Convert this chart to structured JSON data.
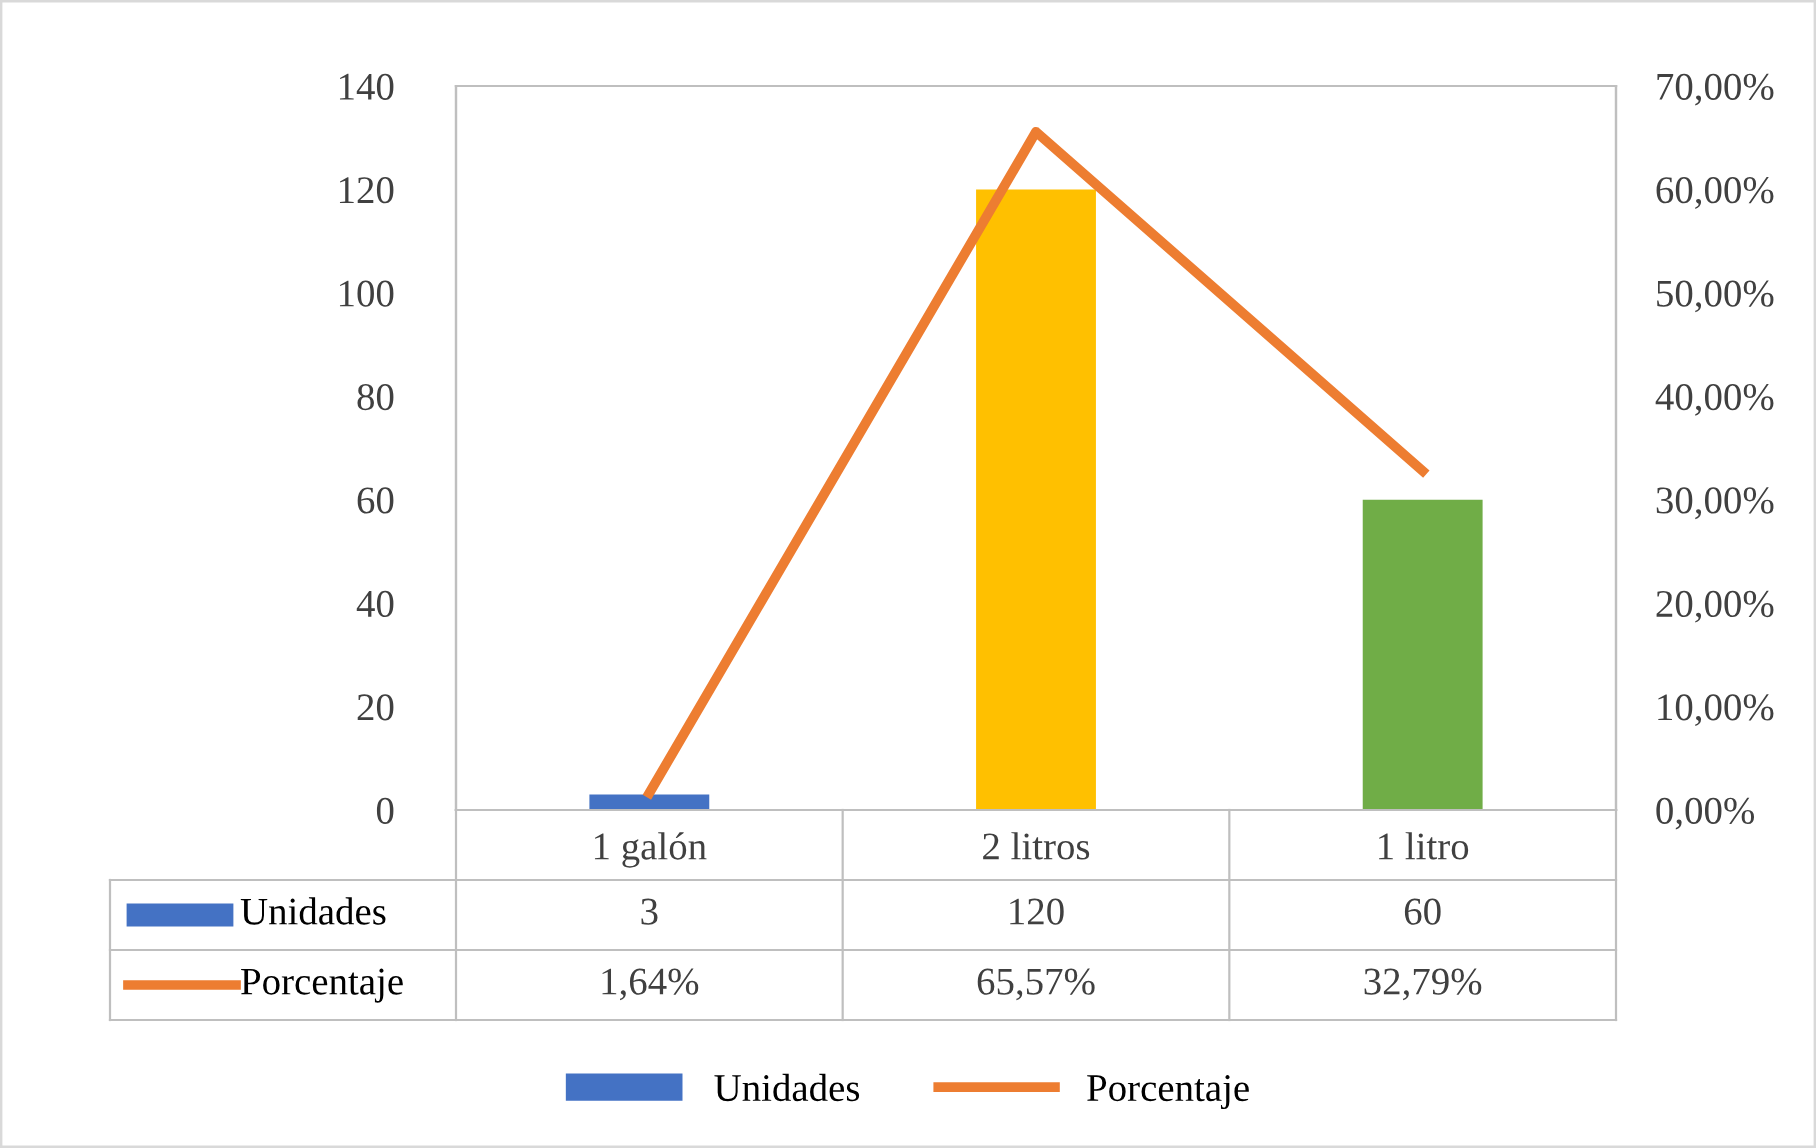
{
  "chart_data": {
    "type": "bar",
    "categories": [
      "1 galón",
      "2 litros",
      "1 litro"
    ],
    "series": [
      {
        "name": "Unidades",
        "type": "bar",
        "color": "#4472c4",
        "colors": [
          "#4472c4",
          "#ffc000",
          "#70ad47"
        ],
        "values": [
          3,
          120,
          60
        ],
        "value_labels": [
          "3",
          "120",
          "60"
        ]
      },
      {
        "name": "Porcentaje",
        "type": "line",
        "axis": "y2",
        "color": "#ed7d31",
        "values": [
          1.64,
          65.57,
          32.79
        ],
        "value_labels": [
          "1,64%",
          "65,57%",
          "32,79%"
        ]
      }
    ],
    "ylim": [
      0,
      140
    ],
    "yticks": [
      0,
      20,
      40,
      60,
      80,
      100,
      120,
      140
    ],
    "y2lim": [
      0,
      70
    ],
    "y2ticks": [
      {
        "value": 0,
        "label": "0,00%"
      },
      {
        "value": 10,
        "label": "10,00%"
      },
      {
        "value": 20,
        "label": "20,00%"
      },
      {
        "value": 30,
        "label": "30,00%"
      },
      {
        "value": 40,
        "label": "40,00%"
      },
      {
        "value": 50,
        "label": "50,00%"
      },
      {
        "value": 60,
        "label": "60,00%"
      },
      {
        "value": 70,
        "label": "70,00%"
      }
    ],
    "grid": false,
    "legend": "bottom",
    "marker": "none",
    "line_style": "solid"
  }
}
